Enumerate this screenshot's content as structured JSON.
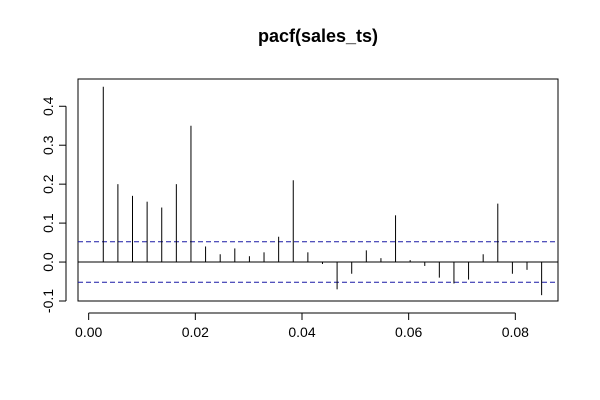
{
  "chart_data": {
    "type": "bar",
    "title": "pacf(sales_ts)",
    "xlabel": "",
    "ylabel": "",
    "xlim": [
      -0.002,
      0.088
    ],
    "ylim": [
      -0.1,
      0.47
    ],
    "x_ticks": [
      0.0,
      0.02,
      0.04,
      0.06,
      0.08
    ],
    "x_tick_labels": [
      "0.00",
      "0.02",
      "0.04",
      "0.06",
      "0.08"
    ],
    "y_ticks": [
      -0.1,
      0.0,
      0.1,
      0.2,
      0.3,
      0.4
    ],
    "y_tick_labels": [
      "-0.1",
      "0.0",
      "0.1",
      "0.2",
      "0.3",
      "0.4"
    ],
    "confidence_bound": 0.052,
    "grid": false,
    "legend": "none",
    "colors": {
      "spikes": "#000000",
      "confidence": "#1a1aa6"
    },
    "series": [
      {
        "x": [
          0.00274,
          0.00548,
          0.00822,
          0.01096,
          0.0137,
          0.01644,
          0.01918,
          0.02192,
          0.02466,
          0.0274,
          0.03014,
          0.03288,
          0.03562,
          0.03836,
          0.0411,
          0.04384,
          0.04658,
          0.04932,
          0.05206,
          0.0548,
          0.05754,
          0.06028,
          0.06302,
          0.06575,
          0.06849,
          0.07123,
          0.07397,
          0.07671,
          0.07945,
          0.08219,
          0.08493
        ],
        "values": [
          0.45,
          0.2,
          0.17,
          0.155,
          0.14,
          0.2,
          0.35,
          0.04,
          0.02,
          0.035,
          0.015,
          0.025,
          0.065,
          0.21,
          0.025,
          -0.005,
          -0.07,
          -0.03,
          0.03,
          0.01,
          0.12,
          0.005,
          -0.01,
          -0.04,
          -0.055,
          -0.045,
          0.02,
          0.15,
          -0.03,
          -0.02,
          -0.085
        ]
      }
    ]
  }
}
